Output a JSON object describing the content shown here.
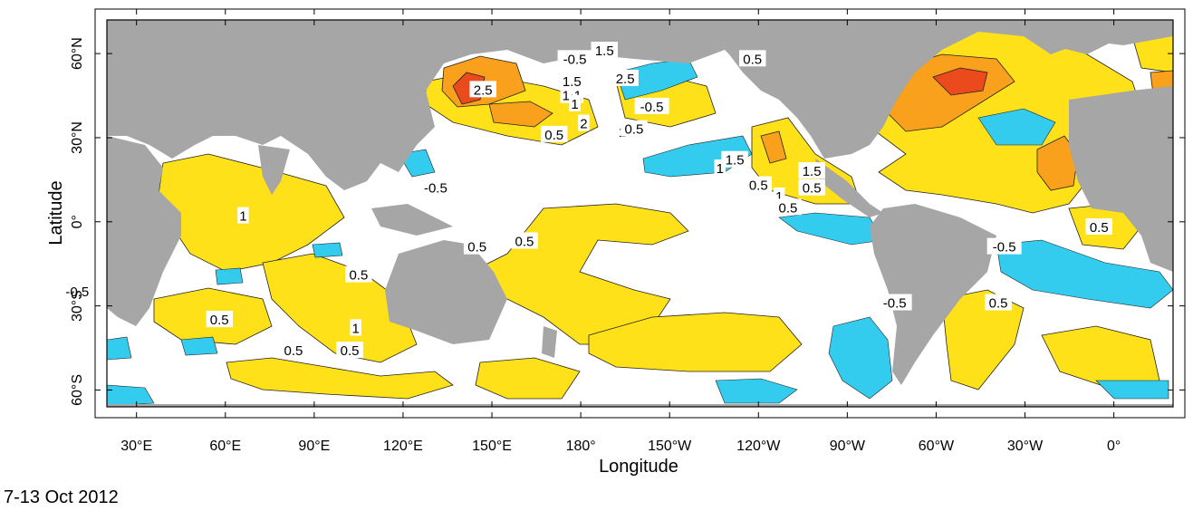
{
  "map": {
    "xlabel": "Longitude",
    "ylabel": "Latitude",
    "x_ticks": [
      "30°E",
      "60°E",
      "90°E",
      "120°E",
      "150°E",
      "180°",
      "150°W",
      "120°W",
      "90°W",
      "60°W",
      "30°W",
      "0°"
    ],
    "y_ticks": [
      "60°N",
      "30°N",
      "0°",
      "30°S",
      "60°S"
    ],
    "contour_labels": [
      {
        "text": "1.5",
        "lon": 188,
        "lat": 61
      },
      {
        "text": "-0.5",
        "lon": 178,
        "lat": 58
      },
      {
        "text": "0.5",
        "lon": 238,
        "lat": 58
      },
      {
        "text": "1.5",
        "lon": 177,
        "lat": 50
      },
      {
        "text": "2.5",
        "lon": 147,
        "lat": 47
      },
      {
        "text": "1",
        "lon": 175,
        "lat": 45
      },
      {
        "text": "1",
        "lon": 179,
        "lat": 45
      },
      {
        "text": "2.5",
        "lon": 195,
        "lat": 51
      },
      {
        "text": "1",
        "lon": 178,
        "lat": 42
      },
      {
        "text": "-0.5",
        "lon": 204,
        "lat": 41
      },
      {
        "text": "2",
        "lon": 181,
        "lat": 35
      },
      {
        "text": "1",
        "lon": 194,
        "lat": 32
      },
      {
        "text": "0.5",
        "lon": 198,
        "lat": 33
      },
      {
        "text": "0.5",
        "lon": 171,
        "lat": 31
      },
      {
        "text": "1.5",
        "lon": 232,
        "lat": 22
      },
      {
        "text": "1",
        "lon": 227,
        "lat": 19
      },
      {
        "text": "1.5",
        "lon": 258,
        "lat": 18
      },
      {
        "text": "-0.5",
        "lon": 131,
        "lat": 12
      },
      {
        "text": "0.5",
        "lon": 240,
        "lat": 13
      },
      {
        "text": "1",
        "lon": 247,
        "lat": 9
      },
      {
        "text": "0.5",
        "lon": 250,
        "lat": 5
      },
      {
        "text": "0.5",
        "lon": 258,
        "lat": 12
      },
      {
        "text": "1",
        "lon": 66,
        "lat": 2
      },
      {
        "text": "0.5",
        "lon": 355,
        "lat": -2
      },
      {
        "text": "-0.5",
        "lon": 323,
        "lat": -9
      },
      {
        "text": "0.5",
        "lon": 145,
        "lat": -9
      },
      {
        "text": "0.5",
        "lon": 161,
        "lat": -7
      },
      {
        "text": "0.5",
        "lon": 105,
        "lat": -19
      },
      {
        "text": "-0.5",
        "lon": 10,
        "lat": -25
      },
      {
        "text": "-0.5",
        "lon": 286,
        "lat": -29
      },
      {
        "text": "0.5",
        "lon": 321,
        "lat": -29
      },
      {
        "text": "0.5",
        "lon": 58,
        "lat": -35
      },
      {
        "text": "1",
        "lon": 104,
        "lat": -38
      },
      {
        "text": "0.5",
        "lon": 83,
        "lat": -46
      },
      {
        "text": "0.5",
        "lon": 102,
        "lat": -46
      }
    ]
  },
  "caption": "7-13 Oct 2012",
  "colors": {
    "land": "#a6a6a6",
    "ocean_neutral": "#ffffff",
    "positive_0_5": "#ffe11a",
    "positive_1_5": "#f9a11c",
    "positive_2_5": "#ea4a1c",
    "negative_0_5": "#33ccee",
    "frame": "#000000"
  }
}
